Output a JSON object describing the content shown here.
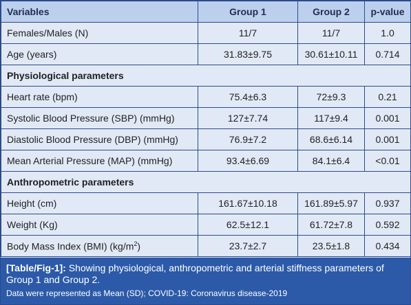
{
  "table": {
    "headers": [
      "Variables",
      "Group 1",
      "Group 2",
      "p-value"
    ],
    "rows": [
      {
        "label": "Females/Males (N)",
        "g1": "11/7",
        "g2": "11/7",
        "p": "1.0"
      },
      {
        "label": "Age (years)",
        "g1": "31.83±9.75",
        "g2": "30.61±10.11",
        "p": "0.714"
      },
      {
        "section": "Physiological parameters"
      },
      {
        "label": "Heart rate (bpm)",
        "g1": "75.4±6.3",
        "g2": "72±9.3",
        "p": "0.21"
      },
      {
        "label": "Systolic Blood Pressure (SBP) (mmHg)",
        "g1": "127±7.74",
        "g2": "117±9.4",
        "p": "0.001"
      },
      {
        "label": "Diastolic Blood Pressure (DBP) (mmHg)",
        "g1": "76.9±7.2",
        "g2": "68.6±6.14",
        "p": "0.001"
      },
      {
        "label": "Mean Arterial Pressure (MAP) (mmHg)",
        "g1": "93.4±6.69",
        "g2": "84.1±6.4",
        "p": "<0.01"
      },
      {
        "section": "Anthropometric parameters"
      },
      {
        "label": "Height (cm)",
        "g1": "161.67±10.18",
        "g2": "161.89±5.97",
        "p": "0.937"
      },
      {
        "label": "Weight (Kg)",
        "g1": "62.5±12.1",
        "g2": "61.72±7.8",
        "p": "0.592"
      },
      {
        "label": "Body Mass Index (BMI) (kg/m",
        "label_sup": "2",
        "label_end": ")",
        "g1": "23.7±2.7",
        "g2": "23.5±1.8",
        "p": "0.434"
      }
    ]
  },
  "caption": {
    "tag": "[Table/Fig-1]:",
    "text": " Showing physiological, anthropometric and arterial stiffness parameters of Group 1 and Group 2.",
    "note": "Data were represented as Mean (SD); COVID-19: Coronavirus disease-2019"
  },
  "colors": {
    "header_bg": "#bcd0ee",
    "body_bg": "#e1e9f6",
    "border": "#2a4a8e",
    "caption_bg": "#2c5aa9"
  }
}
